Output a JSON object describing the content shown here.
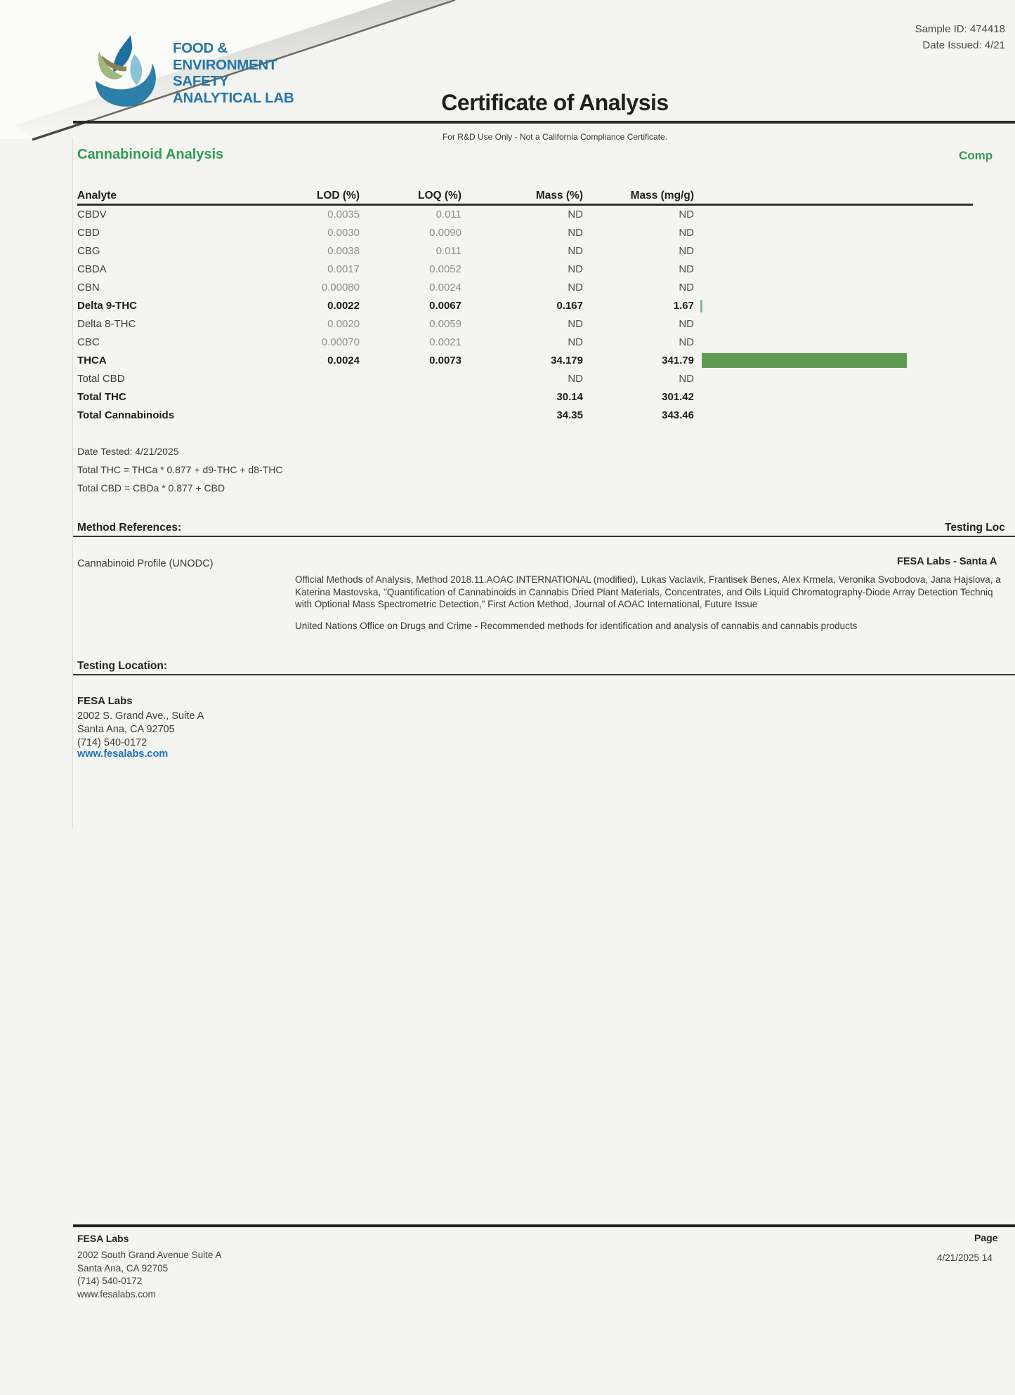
{
  "colors": {
    "accent_green": "#2f9c57",
    "bar_green": "#5d9c51",
    "tick_teal": "#79b9a8",
    "logo_blue": "#2377a9",
    "link_blue": "#1474be"
  },
  "logo": {
    "lines": [
      "FOOD &",
      "ENVIRONMENT",
      "SAFETY",
      "ANALYTICAL LAB"
    ]
  },
  "header": {
    "sample_id": "Sample ID: 474418",
    "date_issued": "Date Issued: 4/21",
    "title": "Certificate of Analysis",
    "subtitle": "For R&D Use Only - Not a California Compliance Certificate."
  },
  "section": {
    "heading": "Cannabinoid Analysis",
    "right_label": "Comp"
  },
  "table": {
    "headers": [
      "Analyte",
      "LOD (%)",
      "LOQ (%)",
      "Mass (%)",
      "Mass (mg/g)"
    ],
    "rows": [
      {
        "analyte": "CBDV",
        "lod": "0.0035",
        "loq": "0.011",
        "mass_pct": "ND",
        "mass_mgg": "ND",
        "bold": false
      },
      {
        "analyte": "CBD",
        "lod": "0.0030",
        "loq": "0.0090",
        "mass_pct": "ND",
        "mass_mgg": "ND",
        "bold": false
      },
      {
        "analyte": "CBG",
        "lod": "0.0038",
        "loq": "0.011",
        "mass_pct": "ND",
        "mass_mgg": "ND",
        "bold": false
      },
      {
        "analyte": "CBDA",
        "lod": "0.0017",
        "loq": "0.0052",
        "mass_pct": "ND",
        "mass_mgg": "ND",
        "bold": false
      },
      {
        "analyte": "CBN",
        "lod": "0.00080",
        "loq": "0.0024",
        "mass_pct": "ND",
        "mass_mgg": "ND",
        "bold": false
      },
      {
        "analyte": "Delta 9-THC",
        "lod": "0.0022",
        "loq": "0.0067",
        "mass_pct": "0.167",
        "mass_mgg": "1.67",
        "bold": true,
        "tick": true
      },
      {
        "analyte": "Delta 8-THC",
        "lod": "0.0020",
        "loq": "0.0059",
        "mass_pct": "ND",
        "mass_mgg": "ND",
        "bold": false
      },
      {
        "analyte": "CBC",
        "lod": "0.00070",
        "loq": "0.0021",
        "mass_pct": "ND",
        "mass_mgg": "ND",
        "bold": false
      },
      {
        "analyte": "THCA",
        "lod": "0.0024",
        "loq": "0.0073",
        "mass_pct": "34.179",
        "mass_mgg": "341.79",
        "bold": true,
        "bar": true
      },
      {
        "analyte": "Total CBD",
        "lod": "",
        "loq": "",
        "mass_pct": "ND",
        "mass_mgg": "ND",
        "bold": false
      },
      {
        "analyte": "Total THC",
        "lod": "",
        "loq": "",
        "mass_pct": "30.14",
        "mass_mgg": "301.42",
        "bold": true
      },
      {
        "analyte": "Total Cannabinoids",
        "lod": "",
        "loq": "",
        "mass_pct": "34.35",
        "mass_mgg": "343.46",
        "bold": true
      }
    ]
  },
  "notes": {
    "date_tested": "Date Tested: 4/21/2025",
    "total_thc_formula": "Total THC = THCa * 0.877 + d9-THC + d8-THC",
    "total_cbd_formula": "Total CBD = CBDa * 0.877 + CBD"
  },
  "method_references": {
    "heading": "Method References:",
    "right_label": "Testing Loc",
    "profile": "Cannabinoid Profile (UNODC)",
    "lab_right": "FESA Labs - Santa A",
    "lines": [
      "Official Methods of Analysis, Method 2018.11.AOAC INTERNATIONAL (modified), Lukas Vaclavik, Frantisek Benes, Alex Krmela, Veronika Svobodova, Jana Hajslova, a",
      "Katerina Mastovska, \"Quantification of Cannabinoids in Cannabis Dried Plant Materials, Concentrates, and Oils Liquid Chromatography-Diode Array Detection Techniq",
      "with Optional Mass Spectrometric Detection,\" First Action Method, Journal of AOAC International, Future Issue"
    ],
    "unodc": "United Nations Office on Drugs and Crime - Recommended methods for identification and analysis of cannabis and cannabis products"
  },
  "testing_location": {
    "heading": "Testing Location:",
    "name": "FESA Labs",
    "address1": "2002 S. Grand Ave., Suite A",
    "address2": "Santa Ana, CA 92705",
    "phone": "(714) 540-0172",
    "website": "www.fesalabs.com"
  },
  "footer": {
    "name": "FESA Labs",
    "address1": "2002 South Grand Avenue Suite A",
    "address2": "Santa Ana, CA 92705",
    "phone": "(714) 540-0172",
    "website": "www.fesalabs.com",
    "page_label": "Page",
    "datetime": "4/21/2025 14"
  }
}
